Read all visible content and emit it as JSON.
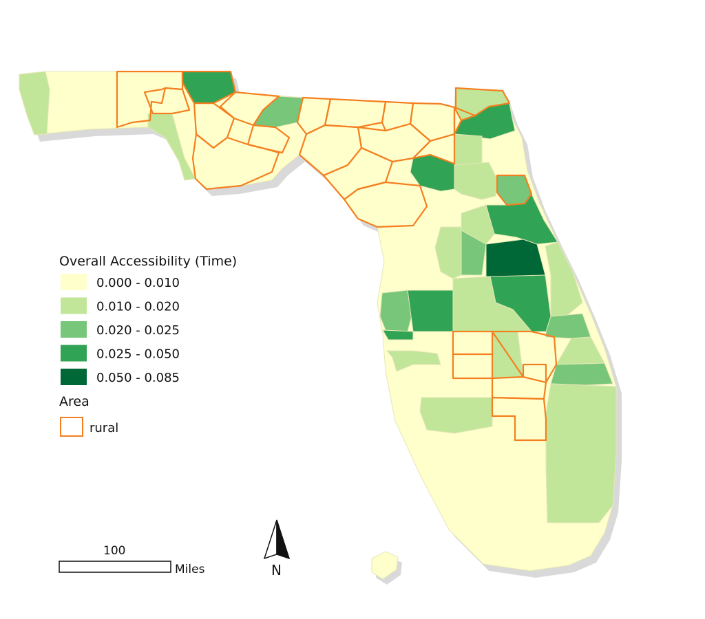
{
  "legend": {
    "title": "Overall Accessibility (Time)",
    "classes": [
      {
        "label": "0.000 - 0.010",
        "color": "#ffffcc"
      },
      {
        "label": "0.010 - 0.020",
        "color": "#c2e699"
      },
      {
        "label": "0.020 - 0.025",
        "color": "#78c679"
      },
      {
        "label": "0.025 - 0.050",
        "color": "#31a354"
      },
      {
        "label": "0.050 - 0.085",
        "color": "#006837"
      }
    ],
    "area_title": "Area",
    "area_label": "rural",
    "rural_outline_color": "#f47f20"
  },
  "scale_bar": {
    "value": "100",
    "unit": "Miles"
  },
  "north_arrow": {
    "label": "N"
  },
  "colors": {
    "county_border": "#e6e6b8",
    "rural_border": "#f47f20",
    "shadow": "#d9d9d9"
  }
}
